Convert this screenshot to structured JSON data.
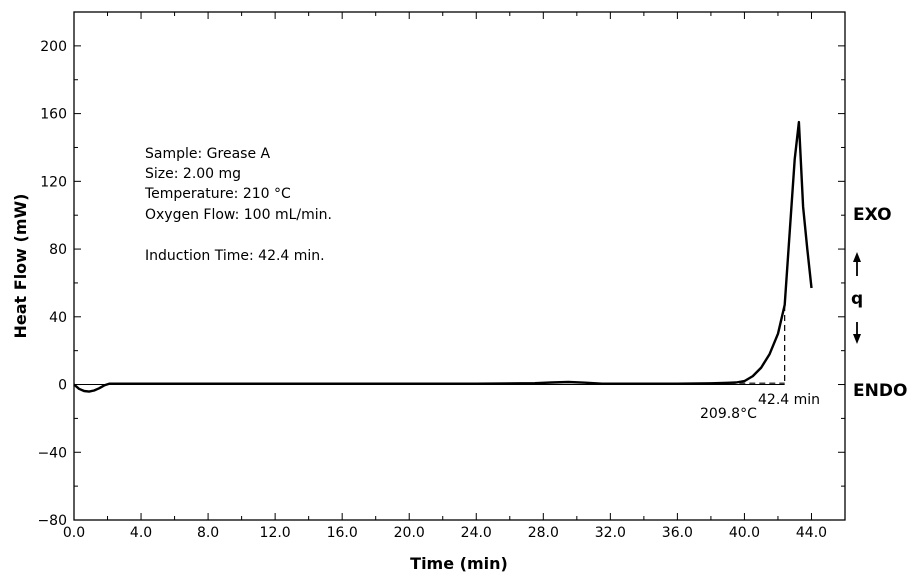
{
  "chart_data": {
    "type": "line",
    "title": "",
    "xlabel": "Time (min)",
    "ylabel": "Heat Flow (mW)",
    "xlim": [
      0,
      46
    ],
    "ylim": [
      -80,
      220
    ],
    "xticks": [
      0,
      4,
      8,
      12,
      16,
      20,
      24,
      28,
      32,
      36,
      40,
      44
    ],
    "xtick_labels": [
      "0.0",
      "4.0",
      "8.0",
      "12.0",
      "16.0",
      "20.0",
      "24.0",
      "28.0",
      "32.0",
      "36.0",
      "40.0",
      "44.0"
    ],
    "yticks": [
      -80,
      -40,
      0,
      40,
      80,
      120,
      160,
      200
    ],
    "ytick_labels": [
      "−80",
      "−40",
      "0",
      "40",
      "80",
      "120",
      "160",
      "200"
    ],
    "grid": false,
    "series": [
      {
        "x": [
          0,
          0.3,
          0.6,
          0.9,
          1.2,
          1.5,
          1.8,
          2.1,
          2.4,
          4,
          8,
          12,
          16,
          20,
          24,
          27.5,
          28.5,
          29.5,
          30.5,
          31.5,
          32,
          36,
          38,
          39,
          39.5,
          40,
          40.5,
          41,
          41.5,
          42,
          42.4,
          42.7,
          43.0,
          43.25,
          43.5,
          43.75,
          44.0
        ],
        "y": [
          0,
          -2.5,
          -3.8,
          -4.2,
          -3.5,
          -2.2,
          -0.5,
          0.5,
          0.5,
          0.5,
          0.5,
          0.5,
          0.5,
          0.5,
          0.5,
          0.8,
          1.2,
          1.5,
          1.1,
          0.5,
          0.5,
          0.5,
          0.7,
          1.0,
          1.2,
          2,
          5,
          10,
          18,
          30,
          47,
          90,
          133,
          155,
          105,
          80,
          57
        ]
      }
    ],
    "baseline_y": 0,
    "tangent": {
      "x": [
        38.5,
        42.4
      ],
      "y": [
        0.8,
        0.8
      ]
    },
    "onset_drop": {
      "x": [
        42.4,
        42.4
      ],
      "y": [
        47,
        0
      ]
    },
    "annotations": {
      "sample_info": [
        "Sample: Grease A",
        "Size: 2.00 mg",
        "Temperature: 210 °C",
        "Oxygen Flow: 100 mL/min."
      ],
      "induction_text": "Induction Time: 42.4 min.",
      "onset_label": "42.4 min",
      "temp_label": "209.8°C"
    },
    "side_labels": {
      "exo": "EXO",
      "q": "q",
      "endo": "ENDO"
    }
  }
}
